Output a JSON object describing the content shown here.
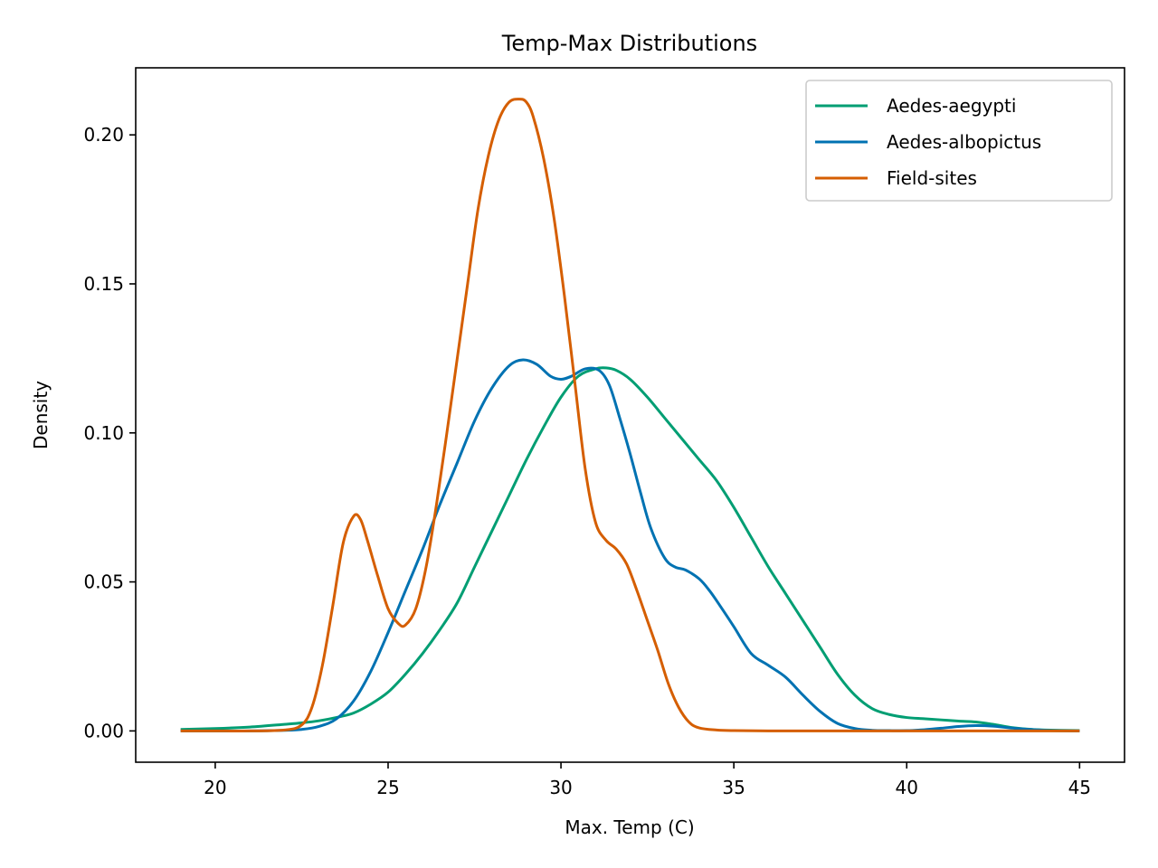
{
  "chart_data": {
    "type": "line",
    "title": "Temp-Max Distributions",
    "xlabel": "Max. Temp (C)",
    "ylabel": "Density",
    "xlim": [
      17.7,
      46.3
    ],
    "ylim": [
      -0.0105,
      0.2225
    ],
    "xticks": [
      20,
      25,
      30,
      35,
      40,
      45
    ],
    "yticks": [
      0.0,
      0.05,
      0.1,
      0.15,
      0.2
    ],
    "xtick_labels": [
      "20",
      "25",
      "30",
      "35",
      "40",
      "45"
    ],
    "ytick_labels": [
      "0.00",
      "0.05",
      "0.10",
      "0.15",
      "0.20"
    ],
    "grid": false,
    "legend": {
      "position": "top-right"
    },
    "series": [
      {
        "name": "Aedes-aegypti",
        "color": "#009E73",
        "x": [
          19,
          20,
          21,
          22,
          22.5,
          23,
          23.5,
          24,
          24.5,
          25,
          25.5,
          26,
          26.5,
          27,
          27.5,
          28,
          28.5,
          29,
          29.5,
          30,
          30.5,
          31,
          31.3,
          31.6,
          32,
          32.5,
          33,
          33.5,
          34,
          34.5,
          35,
          35.5,
          36,
          36.5,
          37,
          37.5,
          38,
          38.5,
          39,
          39.5,
          40,
          40.5,
          41,
          41.5,
          42,
          42.5,
          43,
          43.5,
          44,
          45
        ],
        "y": [
          0.0005,
          0.0008,
          0.0013,
          0.0022,
          0.0027,
          0.0034,
          0.0045,
          0.006,
          0.009,
          0.013,
          0.019,
          0.026,
          0.034,
          0.043,
          0.055,
          0.067,
          0.079,
          0.091,
          0.102,
          0.112,
          0.119,
          0.1215,
          0.1218,
          0.121,
          0.118,
          0.112,
          0.105,
          0.098,
          0.091,
          0.084,
          0.075,
          0.065,
          0.055,
          0.046,
          0.037,
          0.028,
          0.019,
          0.012,
          0.0075,
          0.0055,
          0.0045,
          0.0041,
          0.0037,
          0.0033,
          0.003,
          0.0022,
          0.0012,
          0.0006,
          0.0003,
          0.0001
        ]
      },
      {
        "name": "Aedes-albopictus",
        "color": "#0072B2",
        "x": [
          19,
          20,
          21,
          22,
          22.5,
          23,
          23.5,
          24,
          24.5,
          25,
          25.5,
          26,
          26.5,
          27,
          27.5,
          28,
          28.5,
          28.9,
          29.3,
          29.7,
          30,
          30.3,
          30.7,
          31.1,
          31.4,
          31.7,
          32,
          32.3,
          32.6,
          33,
          33.3,
          33.6,
          34,
          34.3,
          34.6,
          35,
          35.5,
          36,
          36.5,
          37,
          37.5,
          38,
          38.5,
          39,
          39.5,
          40,
          40.5,
          41,
          41.5,
          42,
          42.5,
          43,
          44,
          45
        ],
        "y": [
          0.0,
          0.0,
          0.0,
          0.0002,
          0.0005,
          0.0015,
          0.004,
          0.01,
          0.02,
          0.033,
          0.047,
          0.061,
          0.076,
          0.09,
          0.104,
          0.115,
          0.1225,
          0.1245,
          0.123,
          0.119,
          0.118,
          0.119,
          0.1215,
          0.121,
          0.116,
          0.105,
          0.093,
          0.08,
          0.068,
          0.058,
          0.055,
          0.054,
          0.051,
          0.047,
          0.042,
          0.035,
          0.026,
          0.022,
          0.018,
          0.012,
          0.0065,
          0.0025,
          0.0008,
          0.0002,
          0.0001,
          0.0001,
          0.0004,
          0.0009,
          0.0015,
          0.0018,
          0.0016,
          0.001,
          0.0002,
          0.0
        ]
      },
      {
        "name": "Field-sites",
        "color": "#D55E00",
        "x": [
          19,
          20,
          21,
          22,
          22.5,
          22.8,
          23.1,
          23.4,
          23.7,
          24.0,
          24.2,
          24.4,
          24.7,
          25.0,
          25.3,
          25.5,
          25.8,
          26.1,
          26.4,
          26.7,
          27.0,
          27.3,
          27.6,
          27.9,
          28.2,
          28.5,
          28.8,
          29.0,
          29.2,
          29.5,
          29.8,
          30.1,
          30.4,
          30.7,
          31.0,
          31.3,
          31.6,
          31.9,
          32.2,
          32.5,
          32.8,
          33.1,
          33.4,
          33.7,
          34.0,
          34.5,
          35,
          36,
          38,
          40,
          42,
          45
        ],
        "y": [
          0.0,
          0.0,
          0.0,
          0.0003,
          0.002,
          0.008,
          0.022,
          0.042,
          0.063,
          0.072,
          0.071,
          0.064,
          0.052,
          0.041,
          0.036,
          0.0355,
          0.041,
          0.055,
          0.076,
          0.1,
          0.125,
          0.15,
          0.175,
          0.193,
          0.205,
          0.211,
          0.212,
          0.211,
          0.206,
          0.192,
          0.172,
          0.146,
          0.117,
          0.088,
          0.07,
          0.064,
          0.061,
          0.056,
          0.047,
          0.037,
          0.027,
          0.016,
          0.008,
          0.003,
          0.001,
          0.0003,
          0.0001,
          0.0,
          0.0,
          0.0,
          0.0,
          0.0
        ]
      }
    ]
  }
}
